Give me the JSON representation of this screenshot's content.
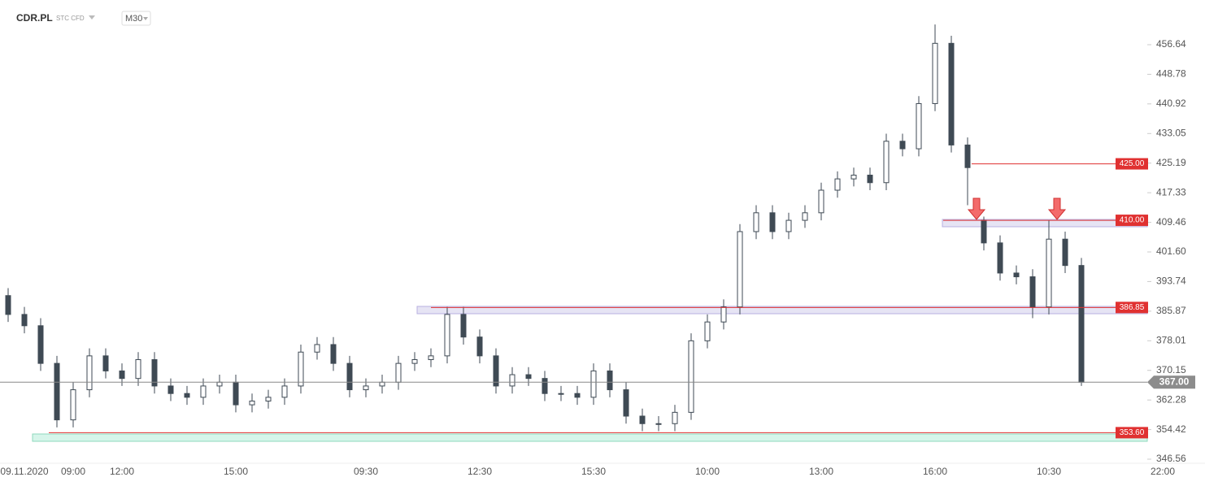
{
  "chart_data": {
    "type": "candlestick",
    "symbol": "CDR.PL",
    "badges": "STC CFD",
    "timeframe": "M30",
    "color": "#3f4a54",
    "level_color": "#e03131",
    "categories": [
      null,
      "09.11.2020",
      null,
      null,
      "09:00",
      null,
      null,
      "12:00",
      null,
      null,
      null,
      null,
      null,
      null,
      "15:00",
      null,
      null,
      null,
      null,
      null,
      null,
      null,
      "09:30",
      null,
      null,
      null,
      null,
      null,
      null,
      "12:30",
      null,
      null,
      null,
      null,
      null,
      null,
      "15:30",
      null,
      null,
      null,
      null,
      null,
      null,
      "10:00",
      null,
      null,
      null,
      null,
      null,
      null,
      "13:00",
      null,
      null,
      null,
      null,
      null,
      null,
      "16:00",
      null,
      null,
      null,
      null,
      null,
      null,
      "10:30",
      null,
      null,
      null,
      null,
      null,
      null,
      "22:00"
    ],
    "open": [
      390,
      385,
      382,
      372,
      357,
      365,
      374,
      370,
      368,
      373,
      366,
      364,
      363,
      366,
      367,
      361,
      362,
      363,
      366,
      375,
      377,
      372,
      365,
      366,
      367,
      372,
      373,
      374,
      385,
      379,
      374,
      366,
      369,
      368,
      364,
      364,
      363,
      370,
      365,
      358,
      356,
      356,
      359,
      378,
      383,
      387,
      407,
      412,
      407,
      410,
      412,
      418,
      421,
      422,
      420,
      431,
      429,
      441,
      457,
      430,
      410,
      404,
      396,
      395,
      387,
      405,
      398,
      null,
      null,
      null,
      null,
      null
    ],
    "high": [
      392,
      387,
      384,
      374,
      367,
      376,
      376,
      372,
      375,
      375,
      368,
      366,
      368,
      369,
      369,
      364,
      365,
      368,
      377,
      379,
      379,
      374,
      368,
      369,
      374,
      375,
      376,
      387,
      387,
      381,
      376,
      371,
      371,
      370,
      366,
      366,
      372,
      372,
      367,
      360,
      358,
      361,
      380,
      385,
      389,
      409,
      414,
      414,
      412,
      414,
      420,
      423,
      424,
      424,
      433,
      433,
      443,
      462,
      459,
      432,
      411,
      406,
      398,
      397,
      410,
      407,
      400,
      null,
      null,
      null,
      null,
      null
    ],
    "low": [
      383,
      380,
      370,
      355,
      355,
      363,
      368,
      366,
      366,
      364,
      362,
      361,
      361,
      364,
      359,
      359,
      360,
      361,
      364,
      373,
      370,
      363,
      363,
      364,
      365,
      370,
      371,
      372,
      377,
      372,
      364,
      364,
      366,
      362,
      362,
      361,
      361,
      363,
      356,
      354,
      354,
      354,
      357,
      376,
      381,
      385,
      405,
      405,
      405,
      408,
      410,
      416,
      419,
      418,
      418,
      427,
      427,
      439,
      428,
      414,
      402,
      394,
      393,
      384,
      385,
      396,
      366,
      null,
      null,
      null,
      null,
      null
    ],
    "close": [
      385,
      382,
      372,
      357,
      365,
      374,
      370,
      368,
      373,
      366,
      364,
      363,
      366,
      367,
      361,
      362,
      363,
      366,
      375,
      377,
      372,
      365,
      366,
      367,
      372,
      373,
      374,
      385,
      379,
      374,
      366,
      369,
      368,
      364,
      364,
      363,
      370,
      365,
      358,
      356,
      356,
      359,
      378,
      383,
      387,
      407,
      412,
      407,
      410,
      412,
      418,
      421,
      422,
      420,
      431,
      429,
      441,
      457,
      430,
      424,
      404,
      396,
      395,
      387,
      405,
      398,
      367,
      null,
      null,
      null,
      null,
      null
    ],
    "ylim": [
      345.48,
      468.51
    ],
    "yticks": [
      346.56,
      354.42,
      362.28,
      370.15,
      378.01,
      385.87,
      393.74,
      {
        "value": 401.6,
        "label": "401.60"
      },
      409.46,
      417.33,
      425.19,
      433.05,
      440.92,
      448.78,
      456.64
    ],
    "levels": [
      {
        "value": 425,
        "label": "425.00"
      },
      {
        "value": 410,
        "label": "410.00"
      },
      {
        "value": 386.85,
        "label": "386.85"
      },
      {
        "value": 353.6,
        "label": "353.60"
      }
    ],
    "last_price": {
      "value": 367,
      "label": "367.00"
    }
  }
}
